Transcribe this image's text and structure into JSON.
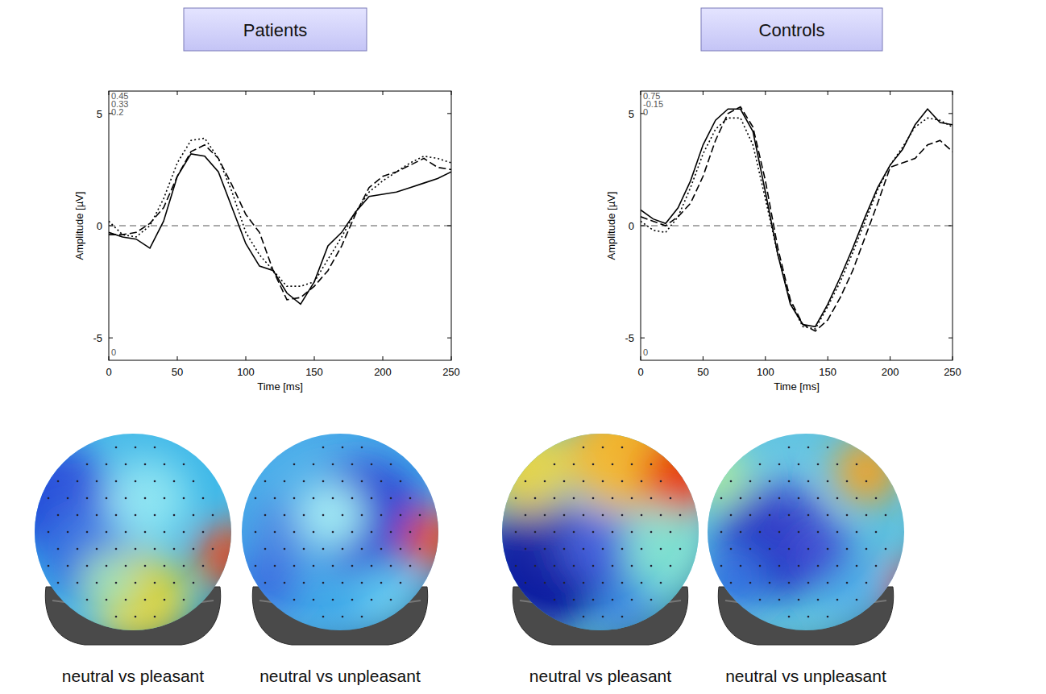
{
  "chart_data": [
    {
      "type": "line",
      "title": "Patients",
      "x_label": "Time [ms]",
      "y_label": "Amplitude [µV]",
      "annotations": [
        "0.45",
        "0.33",
        "0.2",
        "0"
      ],
      "x": [
        0,
        10,
        20,
        30,
        40,
        50,
        60,
        70,
        80,
        90,
        100,
        110,
        120,
        130,
        140,
        150,
        160,
        170,
        180,
        190,
        200,
        210,
        220,
        230,
        240,
        250
      ],
      "xlim": [
        0,
        250
      ],
      "xticks": [
        0,
        50,
        100,
        150,
        200,
        250
      ],
      "ylim": [
        -6,
        6
      ],
      "yticks": [
        -5,
        0,
        5
      ],
      "series": [
        {
          "color": "#000000",
          "line_style": "solid",
          "values": [
            -0.3,
            -0.5,
            -0.6,
            -1.0,
            0.2,
            2.2,
            3.2,
            3.1,
            2.4,
            0.8,
            -0.8,
            -1.8,
            -2.0,
            -3.0,
            -3.5,
            -2.5,
            -0.9,
            -0.3,
            0.6,
            1.3,
            1.4,
            1.5,
            1.7,
            1.9,
            2.1,
            2.4
          ]
        },
        {
          "color": "#000000",
          "line_style": "dotted",
          "values": [
            0.2,
            -0.4,
            -0.5,
            0.0,
            1.2,
            2.8,
            3.8,
            3.9,
            3.0,
            1.5,
            -0.3,
            -1.3,
            -2.0,
            -2.7,
            -2.7,
            -2.5,
            -1.5,
            -0.5,
            0.6,
            1.5,
            2.0,
            2.4,
            2.8,
            3.1,
            3.0,
            2.8
          ]
        },
        {
          "color": "#000000",
          "line_style": "dashed",
          "values": [
            -0.4,
            -0.4,
            -0.3,
            0.1,
            0.8,
            2.2,
            3.3,
            3.6,
            3.0,
            1.8,
            0.5,
            -0.3,
            -2.0,
            -3.3,
            -3.2,
            -2.7,
            -2.0,
            -0.9,
            0.5,
            1.7,
            2.2,
            2.4,
            2.7,
            3.0,
            2.6,
            2.5
          ]
        }
      ],
      "topography_captions": [
        "neutral vs pleasant",
        "neutral vs unpleasant"
      ]
    },
    {
      "type": "line",
      "title": "Controls",
      "x_label": "Time [ms]",
      "y_label": "Amplitude [µV]",
      "annotations": [
        "0.75",
        "-0.15",
        "0",
        "0"
      ],
      "x": [
        0,
        10,
        20,
        30,
        40,
        50,
        60,
        70,
        80,
        90,
        100,
        110,
        120,
        130,
        140,
        150,
        160,
        170,
        180,
        190,
        200,
        210,
        220,
        230,
        240,
        250
      ],
      "xlim": [
        0,
        250
      ],
      "xticks": [
        0,
        50,
        100,
        150,
        200,
        250
      ],
      "ylim": [
        -6,
        6
      ],
      "yticks": [
        -5,
        0,
        5
      ],
      "series": [
        {
          "color": "#000000",
          "line_style": "solid",
          "values": [
            0.7,
            0.3,
            0.1,
            0.8,
            2.0,
            3.6,
            4.7,
            5.2,
            5.2,
            4.2,
            1.5,
            -1.3,
            -3.5,
            -4.4,
            -4.5,
            -3.5,
            -2.3,
            -1.0,
            0.4,
            1.7,
            2.7,
            3.4,
            4.5,
            5.2,
            4.6,
            4.5
          ]
        },
        {
          "color": "#000000",
          "line_style": "dotted",
          "values": [
            0.2,
            -0.2,
            -0.3,
            0.4,
            1.7,
            3.2,
            4.3,
            4.8,
            4.8,
            3.6,
            1.2,
            -1.3,
            -3.4,
            -4.5,
            -4.6,
            -3.6,
            -2.5,
            -1.2,
            0.2,
            1.6,
            2.7,
            3.5,
            4.4,
            4.8,
            4.7,
            4.4
          ]
        },
        {
          "color": "#000000",
          "line_style": "dashed",
          "values": [
            0.4,
            0.2,
            0.0,
            0.4,
            1.0,
            2.2,
            3.8,
            5.0,
            5.3,
            4.4,
            2.0,
            -1.0,
            -3.3,
            -4.4,
            -4.7,
            -4.2,
            -3.2,
            -2.0,
            -0.5,
            1.0,
            2.6,
            2.8,
            3.0,
            3.6,
            3.8,
            3.3
          ]
        }
      ],
      "topography_captions": [
        "neutral vs pleasant",
        "neutral vs unpleasant"
      ]
    }
  ]
}
